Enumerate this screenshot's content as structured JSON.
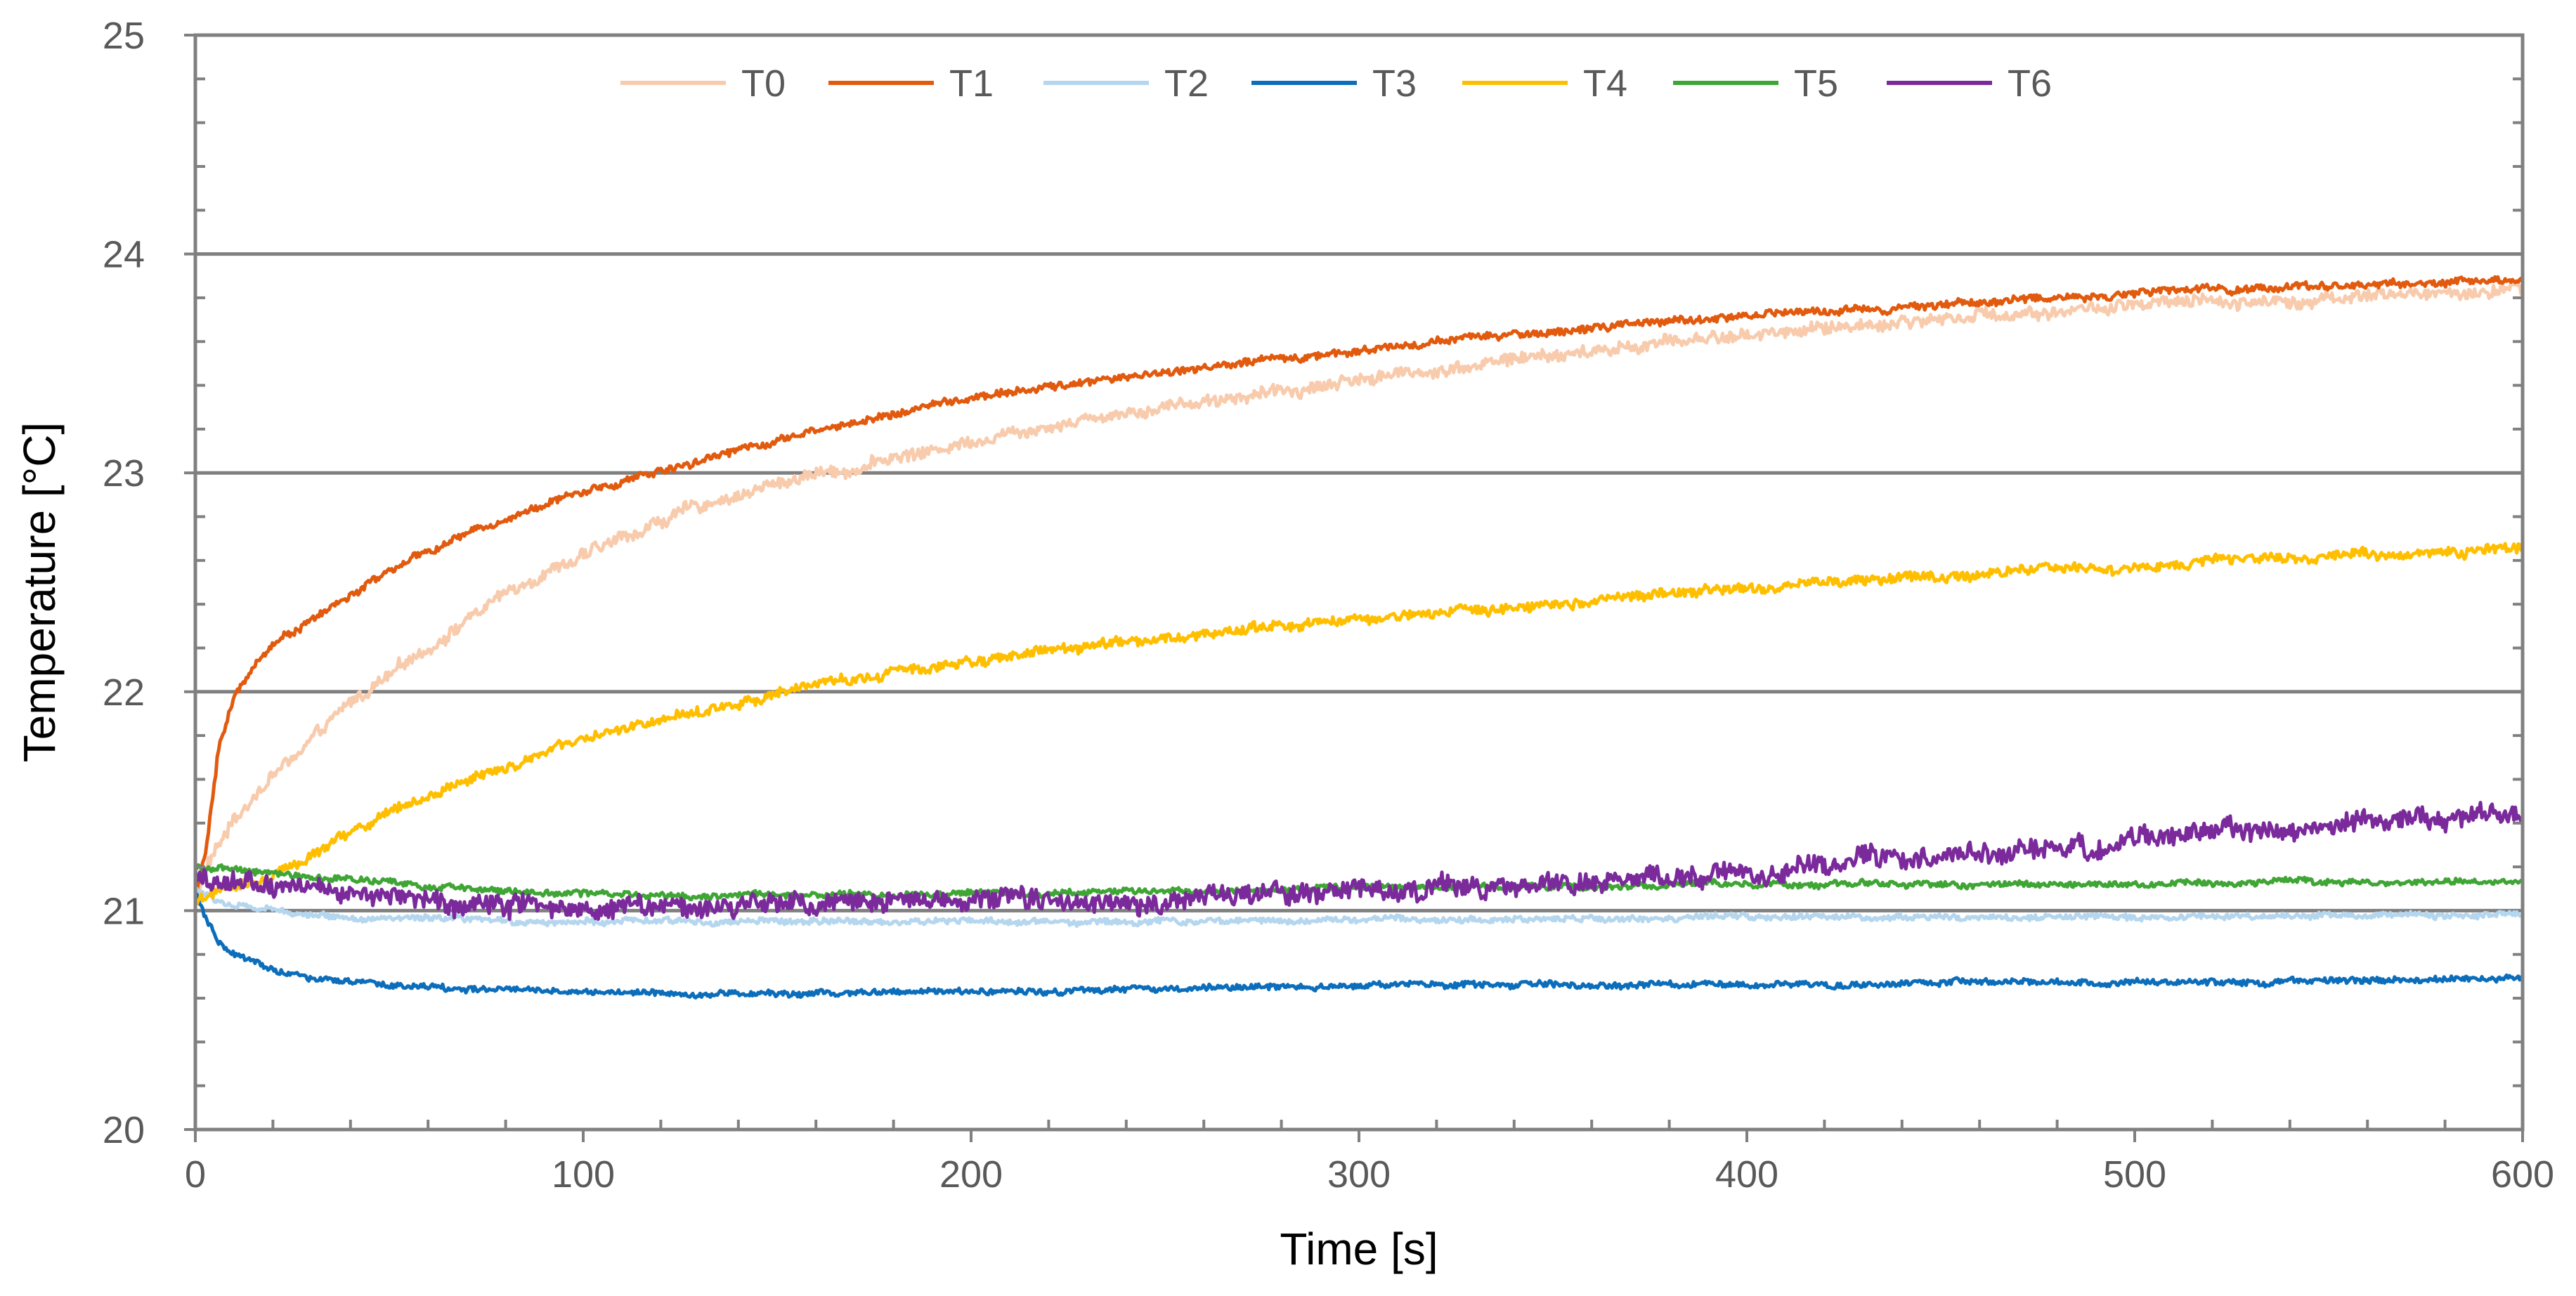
{
  "chart_data": {
    "type": "line",
    "title": "",
    "xlabel": "Time [s]",
    "ylabel": "Temperature [°C]",
    "xlim": [
      0,
      600
    ],
    "ylim": [
      20,
      25
    ],
    "x_ticks": [
      0,
      100,
      200,
      300,
      400,
      500,
      600
    ],
    "x_tick_labels": [
      "0",
      "100",
      "200",
      "300",
      "400",
      "500",
      "600"
    ],
    "y_ticks": [
      20,
      21,
      22,
      23,
      24,
      25
    ],
    "y_tick_labels": [
      "20",
      "21",
      "22",
      "23",
      "24",
      "25"
    ],
    "x_minor_step": 20,
    "y_minor_step": 0.2,
    "gridlines": "horizontal major",
    "legend_position": "top-center",
    "colors": {
      "grid": "#808080",
      "axis": "#808080",
      "tick_label": "#595959",
      "axis_title": "#000000"
    },
    "series": [
      {
        "name": "T0",
        "color": "#F8CBAD",
        "noise": 0.025,
        "points": [
          [
            0,
            21.05
          ],
          [
            3,
            21.2
          ],
          [
            10,
            21.42
          ],
          [
            20,
            21.62
          ],
          [
            30,
            21.77
          ],
          [
            40,
            21.95
          ],
          [
            50,
            22.07
          ],
          [
            60,
            22.2
          ],
          [
            70,
            22.33
          ],
          [
            80,
            22.45
          ],
          [
            90,
            22.55
          ],
          [
            100,
            22.62
          ],
          [
            110,
            22.7
          ],
          [
            120,
            22.78
          ],
          [
            130,
            22.85
          ],
          [
            140,
            22.9
          ],
          [
            150,
            22.95
          ],
          [
            160,
            23.0
          ],
          [
            170,
            23.02
          ],
          [
            180,
            23.07
          ],
          [
            190,
            23.1
          ],
          [
            200,
            23.15
          ],
          [
            220,
            23.22
          ],
          [
            240,
            23.28
          ],
          [
            260,
            23.33
          ],
          [
            280,
            23.37
          ],
          [
            300,
            23.43
          ],
          [
            320,
            23.47
          ],
          [
            340,
            23.52
          ],
          [
            360,
            23.55
          ],
          [
            380,
            23.6
          ],
          [
            400,
            23.63
          ],
          [
            420,
            23.66
          ],
          [
            440,
            23.69
          ],
          [
            460,
            23.72
          ],
          [
            480,
            23.74
          ],
          [
            500,
            23.76
          ],
          [
            520,
            23.78
          ],
          [
            540,
            23.79
          ],
          [
            560,
            23.81
          ],
          [
            580,
            23.82
          ],
          [
            600,
            23.83
          ]
        ]
      },
      {
        "name": "T1",
        "color": "#E15A0E",
        "noise": 0.015,
        "points": [
          [
            0,
            21.05
          ],
          [
            3,
            21.3
          ],
          [
            6,
            21.75
          ],
          [
            10,
            21.97
          ],
          [
            15,
            22.12
          ],
          [
            20,
            22.22
          ],
          [
            30,
            22.33
          ],
          [
            40,
            22.44
          ],
          [
            50,
            22.55
          ],
          [
            60,
            22.64
          ],
          [
            70,
            22.72
          ],
          [
            80,
            22.79
          ],
          [
            90,
            22.86
          ],
          [
            100,
            22.91
          ],
          [
            110,
            22.96
          ],
          [
            120,
            23.01
          ],
          [
            130,
            23.06
          ],
          [
            140,
            23.11
          ],
          [
            150,
            23.15
          ],
          [
            160,
            23.19
          ],
          [
            170,
            23.23
          ],
          [
            180,
            23.27
          ],
          [
            190,
            23.31
          ],
          [
            200,
            23.34
          ],
          [
            220,
            23.39
          ],
          [
            240,
            23.44
          ],
          [
            260,
            23.48
          ],
          [
            280,
            23.52
          ],
          [
            300,
            23.56
          ],
          [
            320,
            23.6
          ],
          [
            340,
            23.63
          ],
          [
            360,
            23.66
          ],
          [
            380,
            23.69
          ],
          [
            400,
            23.72
          ],
          [
            420,
            23.74
          ],
          [
            440,
            23.76
          ],
          [
            460,
            23.78
          ],
          [
            480,
            23.8
          ],
          [
            500,
            23.82
          ],
          [
            520,
            23.84
          ],
          [
            540,
            23.85
          ],
          [
            560,
            23.86
          ],
          [
            580,
            23.87
          ],
          [
            600,
            23.88
          ]
        ]
      },
      {
        "name": "T2",
        "color": "#B4D6EE",
        "noise": 0.012,
        "points": [
          [
            0,
            21.1
          ],
          [
            5,
            21.05
          ],
          [
            10,
            21.02
          ],
          [
            20,
            21.0
          ],
          [
            40,
            20.97
          ],
          [
            60,
            20.96
          ],
          [
            80,
            20.95
          ],
          [
            100,
            20.95
          ],
          [
            150,
            20.95
          ],
          [
            200,
            20.95
          ],
          [
            250,
            20.95
          ],
          [
            300,
            20.96
          ],
          [
            350,
            20.96
          ],
          [
            400,
            20.97
          ],
          [
            450,
            20.97
          ],
          [
            500,
            20.97
          ],
          [
            550,
            20.98
          ],
          [
            600,
            20.98
          ]
        ]
      },
      {
        "name": "T3",
        "color": "#0C6EBB",
        "noise": 0.012,
        "points": [
          [
            0,
            21.08
          ],
          [
            3,
            20.95
          ],
          [
            6,
            20.85
          ],
          [
            10,
            20.8
          ],
          [
            15,
            20.76
          ],
          [
            20,
            20.73
          ],
          [
            30,
            20.69
          ],
          [
            40,
            20.67
          ],
          [
            50,
            20.66
          ],
          [
            70,
            20.64
          ],
          [
            100,
            20.63
          ],
          [
            130,
            20.62
          ],
          [
            150,
            20.62
          ],
          [
            200,
            20.63
          ],
          [
            250,
            20.64
          ],
          [
            300,
            20.66
          ],
          [
            350,
            20.66
          ],
          [
            400,
            20.66
          ],
          [
            450,
            20.67
          ],
          [
            500,
            20.67
          ],
          [
            550,
            20.68
          ],
          [
            600,
            20.69
          ]
        ]
      },
      {
        "name": "T4",
        "color": "#FFBF00",
        "noise": 0.02,
        "points": [
          [
            0,
            21.05
          ],
          [
            5,
            21.08
          ],
          [
            10,
            21.1
          ],
          [
            20,
            21.15
          ],
          [
            30,
            21.25
          ],
          [
            40,
            21.36
          ],
          [
            50,
            21.45
          ],
          [
            60,
            21.52
          ],
          [
            70,
            21.6
          ],
          [
            80,
            21.66
          ],
          [
            90,
            21.72
          ],
          [
            100,
            21.78
          ],
          [
            110,
            21.82
          ],
          [
            120,
            21.87
          ],
          [
            130,
            21.91
          ],
          [
            140,
            21.95
          ],
          [
            150,
            21.99
          ],
          [
            160,
            22.03
          ],
          [
            170,
            22.06
          ],
          [
            180,
            22.09
          ],
          [
            190,
            22.11
          ],
          [
            200,
            22.14
          ],
          [
            220,
            22.19
          ],
          [
            240,
            22.23
          ],
          [
            260,
            22.26
          ],
          [
            280,
            22.3
          ],
          [
            300,
            22.33
          ],
          [
            320,
            22.36
          ],
          [
            340,
            22.39
          ],
          [
            360,
            22.42
          ],
          [
            380,
            22.45
          ],
          [
            400,
            22.47
          ],
          [
            420,
            22.5
          ],
          [
            440,
            22.52
          ],
          [
            460,
            22.54
          ],
          [
            480,
            22.56
          ],
          [
            500,
            22.58
          ],
          [
            520,
            22.6
          ],
          [
            540,
            22.61
          ],
          [
            560,
            22.63
          ],
          [
            580,
            22.64
          ],
          [
            600,
            22.65
          ]
        ]
      },
      {
        "name": "T5",
        "color": "#3FA535",
        "noise": 0.012,
        "points": [
          [
            0,
            21.2
          ],
          [
            20,
            21.17
          ],
          [
            40,
            21.14
          ],
          [
            60,
            21.11
          ],
          [
            80,
            21.09
          ],
          [
            100,
            21.08
          ],
          [
            130,
            21.07
          ],
          [
            160,
            21.07
          ],
          [
            200,
            21.08
          ],
          [
            250,
            21.09
          ],
          [
            300,
            21.1
          ],
          [
            350,
            21.11
          ],
          [
            400,
            21.12
          ],
          [
            450,
            21.12
          ],
          [
            500,
            21.12
          ],
          [
            550,
            21.13
          ],
          [
            600,
            21.13
          ]
        ]
      },
      {
        "name": "T6",
        "color": "#7B2A9B",
        "noise": 0.04,
        "points": [
          [
            0,
            21.14
          ],
          [
            20,
            21.12
          ],
          [
            40,
            21.08
          ],
          [
            60,
            21.05
          ],
          [
            80,
            21.04
          ],
          [
            100,
            21.03
          ],
          [
            120,
            21.02
          ],
          [
            140,
            21.01
          ],
          [
            160,
            21.02
          ],
          [
            180,
            21.03
          ],
          [
            200,
            21.04
          ],
          [
            220,
            21.05
          ],
          [
            240,
            21.05
          ],
          [
            260,
            21.06
          ],
          [
            280,
            21.07
          ],
          [
            300,
            21.09
          ],
          [
            320,
            21.1
          ],
          [
            340,
            21.12
          ],
          [
            360,
            21.14
          ],
          [
            380,
            21.15
          ],
          [
            400,
            21.18
          ],
          [
            420,
            21.21
          ],
          [
            440,
            21.24
          ],
          [
            460,
            21.26
          ],
          [
            480,
            21.28
          ],
          [
            500,
            21.31
          ],
          [
            520,
            21.34
          ],
          [
            540,
            21.37
          ],
          [
            560,
            21.4
          ],
          [
            580,
            21.42
          ],
          [
            600,
            21.45
          ]
        ]
      }
    ]
  }
}
